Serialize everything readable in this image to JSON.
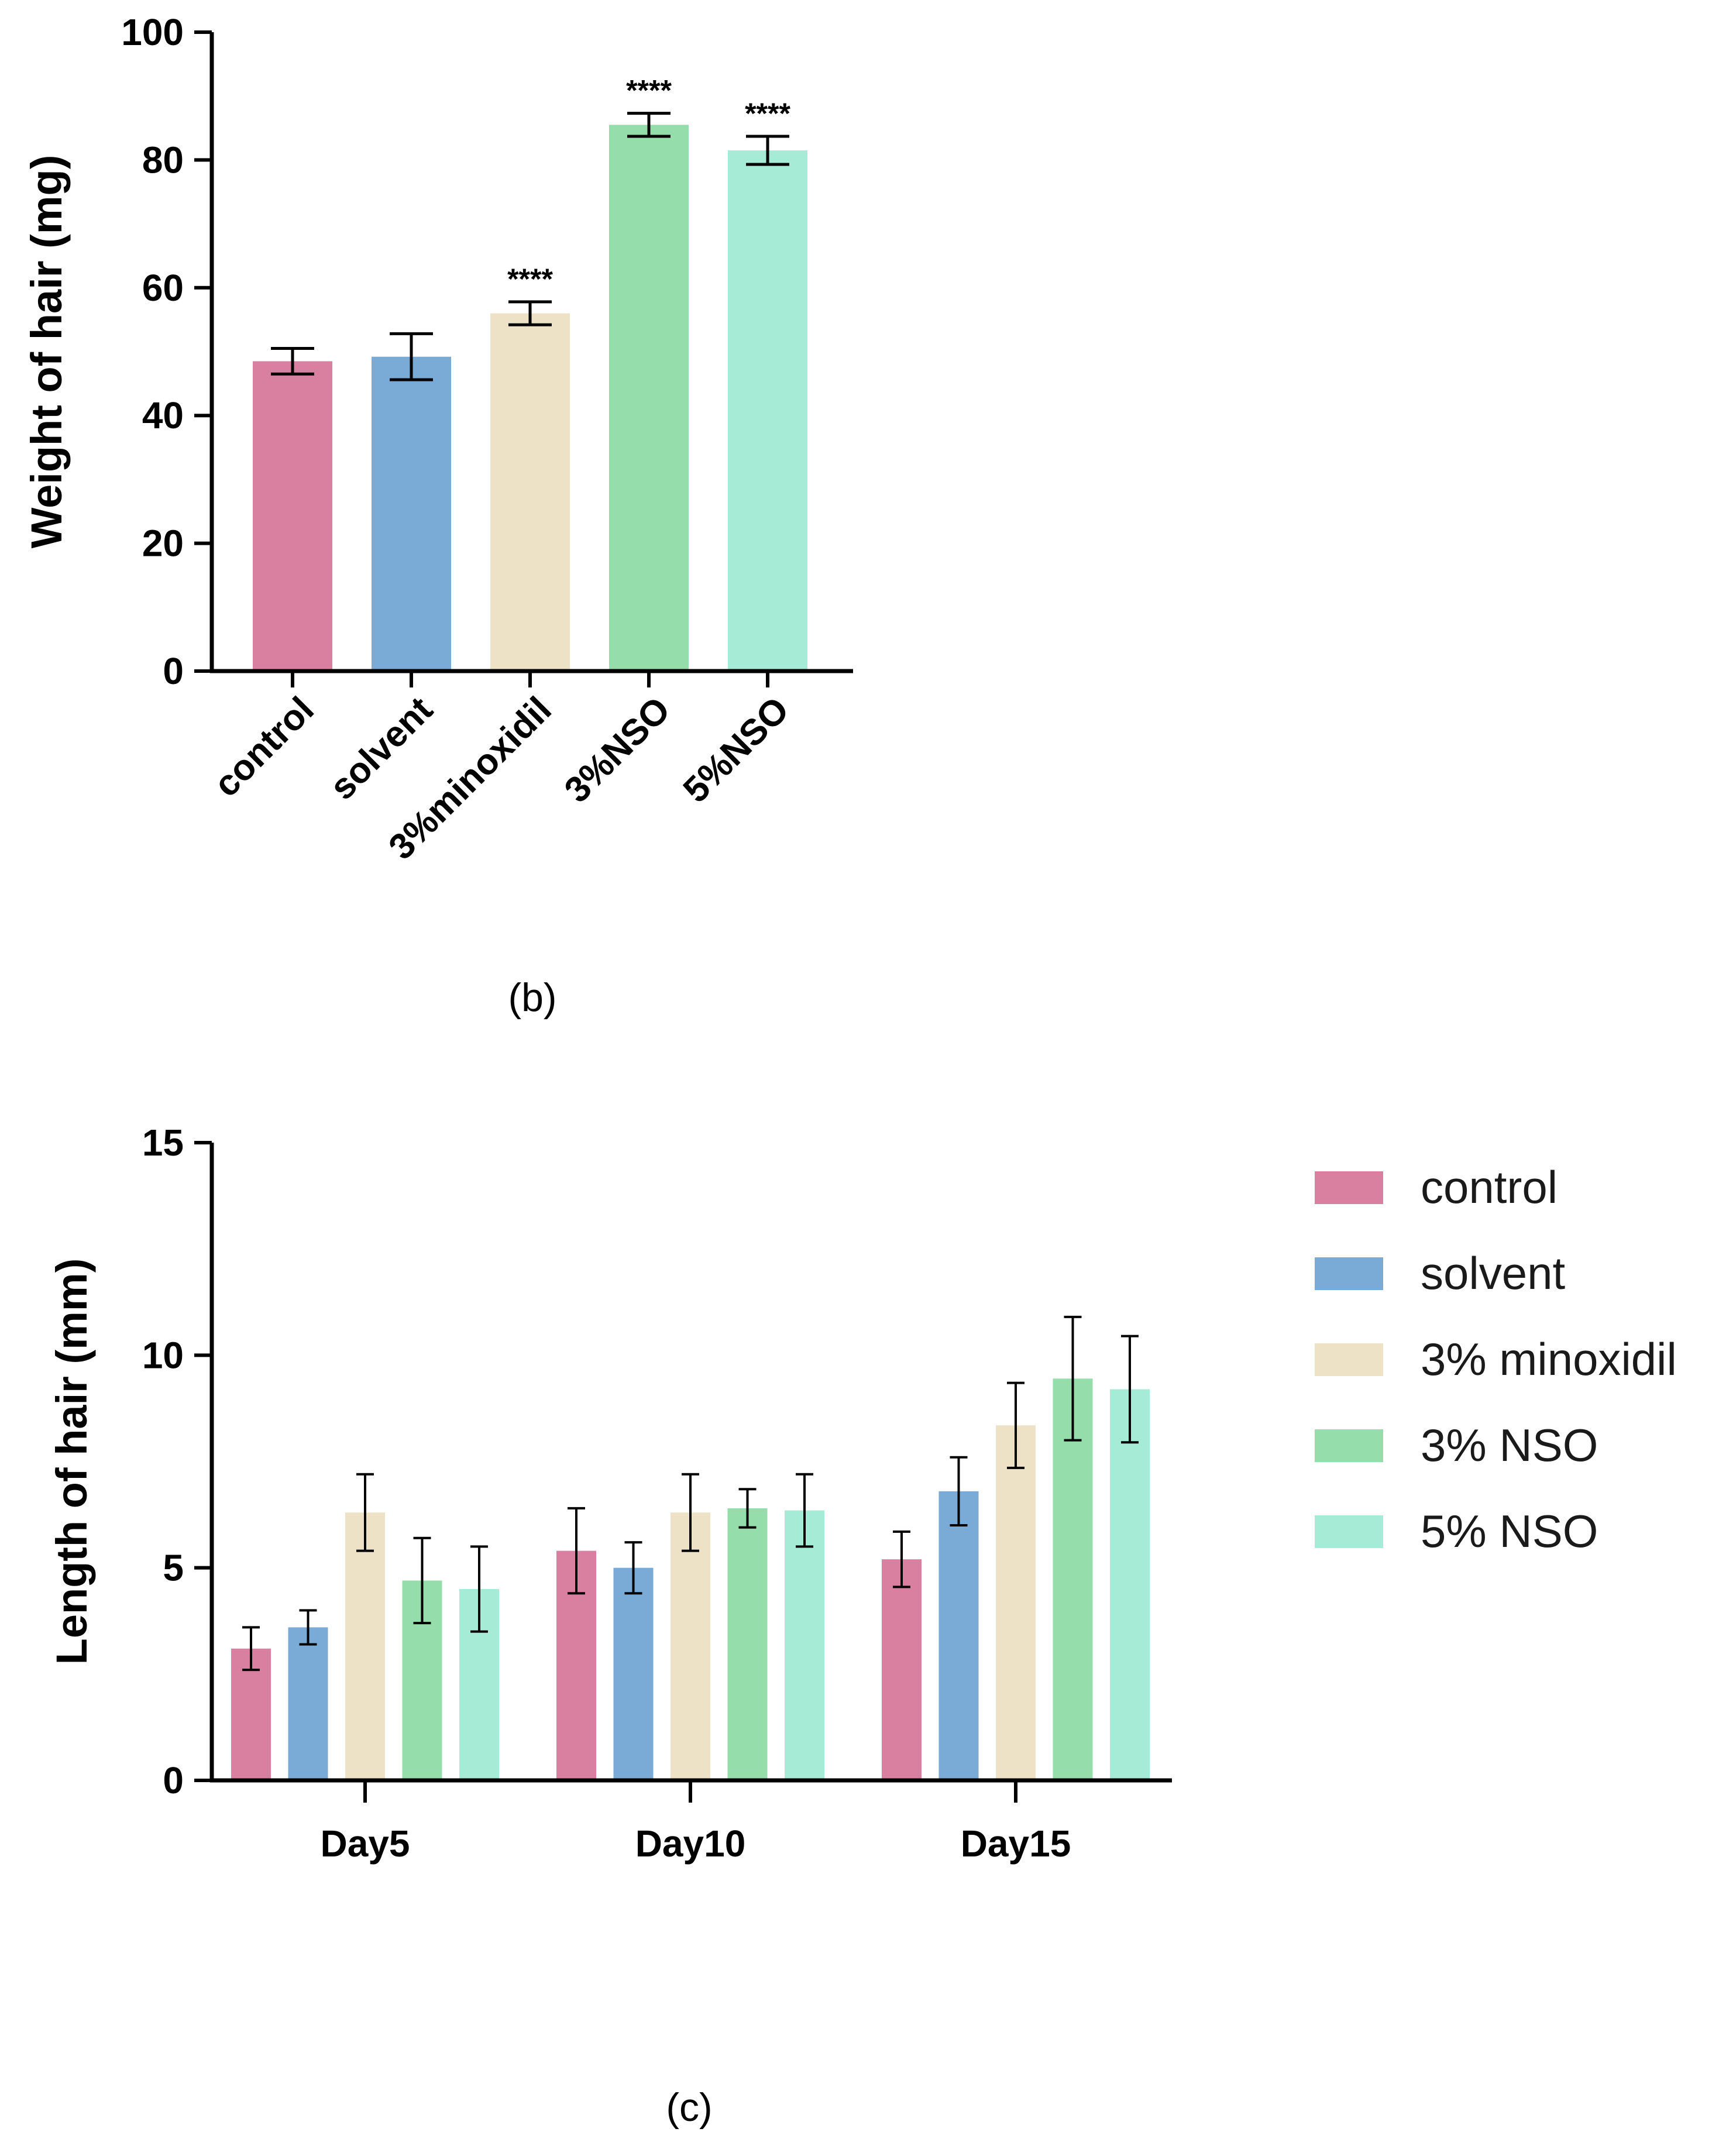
{
  "chart_data": [
    {
      "panel": "(b)",
      "type": "bar",
      "title": "",
      "xlabel": "",
      "ylabel": "Weight of hair (mg)",
      "ylim": [
        0,
        100
      ],
      "yticks": [
        0,
        20,
        40,
        60,
        80,
        100
      ],
      "grid": false,
      "categories": [
        "control",
        "solvent",
        "3%minoxidil",
        "3%NSO",
        "5%NSO"
      ],
      "values": [
        48.5,
        49.2,
        56.0,
        85.5,
        81.5
      ],
      "errors": [
        2.0,
        3.6,
        1.8,
        1.8,
        2.2
      ],
      "annotations": [
        "",
        "",
        "****",
        "****",
        "****"
      ],
      "colors": [
        "#d97f9f",
        "#7aaad6",
        "#ede2c6",
        "#95ddab",
        "#a6ebd5"
      ]
    },
    {
      "panel": "(c)",
      "type": "bar",
      "title": "",
      "xlabel": "",
      "ylabel": "Length of hair (mm)",
      "ylim": [
        0,
        15
      ],
      "yticks": [
        0,
        5,
        10,
        15
      ],
      "grid": false,
      "legend_position": "right",
      "categories": [
        "Day5",
        "Day10",
        "Day15"
      ],
      "series": [
        {
          "name": "control",
          "color": "#d97f9f",
          "values": [
            3.1,
            5.4,
            5.2
          ],
          "errors": [
            0.5,
            1.0,
            0.65
          ]
        },
        {
          "name": "solvent",
          "color": "#7aaad6",
          "values": [
            3.6,
            5.0,
            6.8
          ],
          "errors": [
            0.4,
            0.6,
            0.8
          ]
        },
        {
          "name": "3% minoxidil",
          "color": "#ede2c6",
          "values": [
            6.3,
            6.3,
            8.35
          ],
          "errors": [
            0.9,
            0.9,
            1.0
          ]
        },
        {
          "name": "3% NSO",
          "color": "#95ddab",
          "values": [
            4.7,
            6.4,
            9.45
          ],
          "errors": [
            1.0,
            0.45,
            1.45
          ]
        },
        {
          "name": "5% NSO",
          "color": "#a6ebd5",
          "values": [
            4.5,
            6.35,
            9.2
          ],
          "errors": [
            1.0,
            0.85,
            1.25
          ]
        }
      ]
    }
  ]
}
